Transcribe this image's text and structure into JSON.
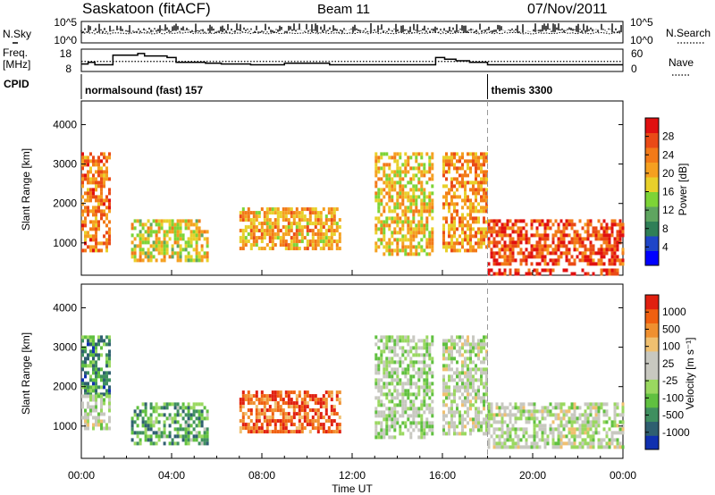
{
  "header": {
    "station": "Saskatoon (fitACF)",
    "beam": "Beam 11",
    "date": "07/Nov/2011"
  },
  "status_panel": {
    "nsky_label": "N.Sky",
    "nsky_ticks": [
      "10^5",
      "10^0"
    ],
    "nsearch_label": "N.Search",
    "nsearch_ticks": [
      "10^5",
      "10^0"
    ],
    "freq_label_1": "Freq.",
    "freq_label_2": "[MHz]",
    "freq_ticks": [
      "18",
      "8"
    ],
    "nave_label": "Nave",
    "nave_ticks": [
      "60",
      "0"
    ],
    "cpid_label": "CPID",
    "cpid_programs": [
      {
        "name": "normalsound (fast) 157",
        "start_hour": 0
      },
      {
        "name": "themis 3300",
        "start_hour": 18
      }
    ],
    "freq_mhz_series": {
      "hours": [
        0,
        0.3,
        0.6,
        1.2,
        1.4,
        2.5,
        2.8,
        3.8,
        4.2,
        5,
        5.5,
        6.2,
        7.5,
        9,
        11,
        13,
        15.7,
        16.1,
        16.6,
        17.2,
        18,
        19.5,
        21,
        24
      ],
      "values": [
        11,
        12,
        10.5,
        10.5,
        16.5,
        17.5,
        16,
        15,
        12,
        12,
        11.5,
        11,
        10.5,
        11.5,
        10.5,
        10.5,
        15,
        14,
        13,
        12,
        10.5,
        10.5,
        10.5,
        10.5
      ]
    },
    "nave_dotted_level": 0.45
  },
  "chart_data": [
    {
      "type": "heatmap",
      "parameter": "Power",
      "ylabel": "Slant Range [km]",
      "ylim": [
        180,
        4600
      ],
      "yticks": [
        "4000",
        "3000",
        "2000",
        "1000"
      ],
      "colorbar_label": "Power [dB]",
      "colorbar_ticks": [
        "28",
        "24",
        "20",
        "16",
        "12",
        "8",
        "4"
      ],
      "colorbar_range": [
        0,
        32
      ],
      "colors": [
        "#0000ff",
        "#1f45c8",
        "#2f7f57",
        "#5fa560",
        "#7dd436",
        "#e8d02a",
        "#f5a020",
        "#f27a18",
        "#ea4a16",
        "#e01010"
      ],
      "features": [
        {
          "x": [
            0.0,
            1.2
          ],
          "y": [
            800,
            3300
          ],
          "level": 0.75
        },
        {
          "x": [
            2.2,
            5.6
          ],
          "y": [
            600,
            1600
          ],
          "level": 0.55
        },
        {
          "x": [
            7.0,
            11.5
          ],
          "y": [
            900,
            1900
          ],
          "level": 0.65
        },
        {
          "x": [
            13.0,
            15.6
          ],
          "y": [
            700,
            3300
          ],
          "level": 0.6
        },
        {
          "x": [
            16.0,
            18.0
          ],
          "y": [
            800,
            3300
          ],
          "level": 0.7
        },
        {
          "x": [
            18.0,
            24.0
          ],
          "y": [
            500,
            1600
          ],
          "level": 0.85
        },
        {
          "x": [
            18.0,
            24.0
          ],
          "y": [
            250,
            350
          ],
          "level": 0.9
        }
      ]
    },
    {
      "type": "heatmap",
      "parameter": "Velocity",
      "ylabel": "Slant Range [km]",
      "ylim": [
        180,
        4600
      ],
      "yticks": [
        "4000",
        "3000",
        "2000",
        "1000"
      ],
      "colorbar_label": "Velocity [m s⁻¹]",
      "colorbar_ticks": [
        "1000",
        "500",
        "100",
        "25",
        "-25",
        "-100",
        "-500",
        "-1000"
      ],
      "colorbar_range": [
        -1200,
        1200
      ],
      "colors": [
        "#1030b0",
        "#2f5f70",
        "#3f8f5f",
        "#60c040",
        "#9ad860",
        "#c8c8c0",
        "#c8c8c0",
        "#f0c070",
        "#f09030",
        "#f06010",
        "#e02010"
      ],
      "features": [
        {
          "x": [
            0.0,
            1.2
          ],
          "y": [
            1800,
            3300
          ],
          "level": 0.25
        },
        {
          "x": [
            0.0,
            1.2
          ],
          "y": [
            900,
            1800
          ],
          "level": 0.5
        },
        {
          "x": [
            2.2,
            5.6
          ],
          "y": [
            600,
            1600
          ],
          "level": 0.3
        },
        {
          "x": [
            7.0,
            11.5
          ],
          "y": [
            900,
            1900
          ],
          "level": 0.85
        },
        {
          "x": [
            13.0,
            15.6
          ],
          "y": [
            700,
            3300
          ],
          "level": 0.45
        },
        {
          "x": [
            16.0,
            18.0
          ],
          "y": [
            800,
            3300
          ],
          "level": 0.5
        },
        {
          "x": [
            18.0,
            24.0
          ],
          "y": [
            500,
            1600
          ],
          "level": 0.5
        }
      ]
    }
  ],
  "time_axis": {
    "label": "Time UT",
    "range_hours": [
      0,
      24
    ],
    "ticks": [
      "00:00",
      "04:00",
      "08:00",
      "12:00",
      "16:00",
      "20:00",
      "00:00"
    ]
  }
}
